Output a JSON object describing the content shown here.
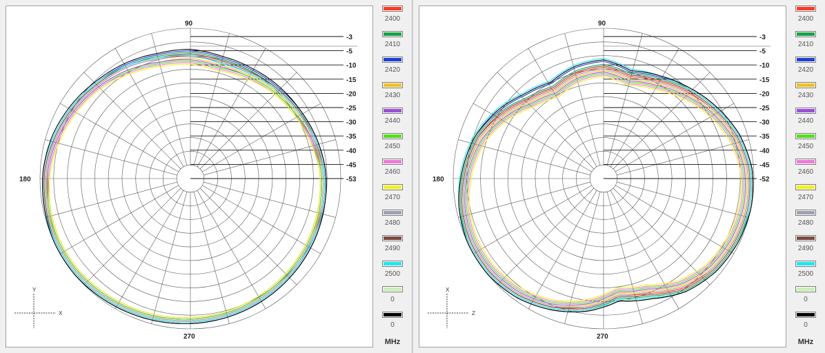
{
  "legend_unit": "MHz",
  "legend": [
    {
      "label": "2400",
      "color": "#ff3b1f"
    },
    {
      "label": "2410",
      "color": "#1aa04a"
    },
    {
      "label": "2420",
      "color": "#1f3fd0"
    },
    {
      "label": "2430",
      "color": "#f0c020"
    },
    {
      "label": "2440",
      "color": "#9a4fd8"
    },
    {
      "label": "2450",
      "color": "#55dd22"
    },
    {
      "label": "2460",
      "color": "#f07ad8"
    },
    {
      "label": "2470",
      "color": "#f2f020"
    },
    {
      "label": "2480",
      "color": "#9aa2b0"
    },
    {
      "label": "2490",
      "color": "#7a4a42"
    },
    {
      "label": "2500",
      "color": "#22e6f0"
    },
    {
      "label": "0",
      "color": "#c8f0b8"
    },
    {
      "label": "0",
      "color": "#000000"
    }
  ],
  "chart_data": [
    {
      "type": "polar",
      "angle_labels": {
        "top": "90",
        "left": "180",
        "bottom": "270"
      },
      "radial_scale_labels": [
        "-3",
        "-5",
        "-10",
        "-15",
        "-20",
        "-25",
        "-30",
        "-35",
        "-40",
        "-45",
        "-53"
      ],
      "axis_indicator": {
        "vertical": "Y",
        "horizontal": "X"
      },
      "series": [
        {
          "name": "2400",
          "color": "#ff3b1f",
          "r_by_angle": [
            0.82,
            0.82,
            0.85,
            0.87,
            0.9,
            0.93,
            0.96,
            0.97,
            0.98,
            0.98,
            0.97,
            0.96,
            0.95,
            0.94,
            0.93,
            0.92,
            0.91,
            0.9,
            0.9,
            0.89,
            0.86,
            0.84,
            0.82,
            0.8,
            0.8,
            0.82
          ]
        },
        {
          "name": "2410",
          "color": "#1aa04a",
          "r_by_angle": [
            0.84,
            0.84,
            0.86,
            0.88,
            0.91,
            0.94,
            0.97,
            0.98,
            0.99,
            0.99,
            0.98,
            0.97,
            0.96,
            0.95,
            0.94,
            0.93,
            0.92,
            0.91,
            0.9,
            0.89,
            0.87,
            0.85,
            0.83,
            0.82,
            0.82,
            0.84
          ]
        },
        {
          "name": "2420",
          "color": "#1f3fd0",
          "r_by_angle": [
            0.85,
            0.85,
            0.87,
            0.89,
            0.92,
            0.95,
            0.98,
            0.99,
            1.0,
            1.0,
            0.99,
            0.98,
            0.97,
            0.96,
            0.95,
            0.94,
            0.93,
            0.92,
            0.91,
            0.9,
            0.88,
            0.86,
            0.84,
            0.83,
            0.83,
            0.85
          ]
        },
        {
          "name": "2430",
          "color": "#f0c020",
          "r_by_angle": [
            0.8,
            0.8,
            0.83,
            0.86,
            0.89,
            0.92,
            0.95,
            0.97,
            0.97,
            0.97,
            0.96,
            0.95,
            0.94,
            0.93,
            0.92,
            0.91,
            0.9,
            0.89,
            0.89,
            0.88,
            0.85,
            0.83,
            0.81,
            0.79,
            0.78,
            0.8
          ]
        },
        {
          "name": "2440",
          "color": "#9a4fd8",
          "r_by_angle": [
            0.79,
            0.8,
            0.83,
            0.86,
            0.89,
            0.92,
            0.95,
            0.96,
            0.97,
            0.97,
            0.96,
            0.95,
            0.94,
            0.93,
            0.92,
            0.91,
            0.9,
            0.89,
            0.88,
            0.87,
            0.85,
            0.82,
            0.8,
            0.78,
            0.77,
            0.79
          ]
        },
        {
          "name": "2450",
          "color": "#55dd22",
          "r_by_angle": [
            0.78,
            0.79,
            0.82,
            0.85,
            0.88,
            0.91,
            0.94,
            0.96,
            0.97,
            0.97,
            0.96,
            0.95,
            0.94,
            0.93,
            0.92,
            0.91,
            0.9,
            0.89,
            0.88,
            0.87,
            0.84,
            0.82,
            0.8,
            0.78,
            0.76,
            0.78
          ]
        },
        {
          "name": "2460",
          "color": "#f07ad8",
          "r_by_angle": [
            0.77,
            0.78,
            0.81,
            0.85,
            0.88,
            0.91,
            0.94,
            0.95,
            0.96,
            0.96,
            0.95,
            0.94,
            0.93,
            0.92,
            0.91,
            0.9,
            0.89,
            0.88,
            0.87,
            0.86,
            0.84,
            0.81,
            0.79,
            0.77,
            0.75,
            0.77
          ]
        },
        {
          "name": "2470",
          "color": "#f2f020",
          "r_by_angle": [
            0.76,
            0.77,
            0.8,
            0.84,
            0.87,
            0.9,
            0.93,
            0.95,
            0.96,
            0.96,
            0.95,
            0.94,
            0.93,
            0.92,
            0.91,
            0.9,
            0.89,
            0.88,
            0.87,
            0.86,
            0.83,
            0.81,
            0.79,
            0.76,
            0.74,
            0.76
          ]
        },
        {
          "name": "2480",
          "color": "#9aa2b0",
          "r_by_angle": [
            0.81,
            0.82,
            0.85,
            0.87,
            0.9,
            0.93,
            0.96,
            0.97,
            0.98,
            0.98,
            0.97,
            0.96,
            0.95,
            0.94,
            0.93,
            0.92,
            0.91,
            0.9,
            0.89,
            0.88,
            0.86,
            0.84,
            0.82,
            0.8,
            0.8,
            0.81
          ]
        },
        {
          "name": "2490",
          "color": "#7a4a42",
          "r_by_angle": [
            0.83,
            0.83,
            0.86,
            0.88,
            0.91,
            0.94,
            0.97,
            0.98,
            0.99,
            0.99,
            0.98,
            0.97,
            0.96,
            0.95,
            0.94,
            0.93,
            0.92,
            0.91,
            0.9,
            0.89,
            0.87,
            0.85,
            0.83,
            0.81,
            0.81,
            0.83
          ]
        },
        {
          "name": "2500",
          "color": "#22e6f0",
          "r_by_angle": [
            0.82,
            0.83,
            0.86,
            0.89,
            0.92,
            0.95,
            0.98,
            0.99,
            0.99,
            0.99,
            0.98,
            0.97,
            0.96,
            0.95,
            0.94,
            0.93,
            0.92,
            0.91,
            0.9,
            0.89,
            0.87,
            0.84,
            0.82,
            0.8,
            0.79,
            0.82
          ]
        },
        {
          "name": "0",
          "color": "#000000",
          "r_by_angle": [
            0.86,
            0.86,
            0.88,
            0.9,
            0.93,
            0.96,
            0.98,
            0.99,
            1.0,
            1.0,
            0.99,
            0.98,
            0.97,
            0.96,
            0.95,
            0.94,
            0.93,
            0.92,
            0.91,
            0.9,
            0.88,
            0.86,
            0.85,
            0.84,
            0.84,
            0.86
          ]
        }
      ]
    },
    {
      "type": "polar",
      "angle_labels": {
        "top": "90",
        "left": "180",
        "bottom": "270"
      },
      "radial_scale_labels": [
        "-3",
        "-5",
        "-10",
        "-15",
        "-20",
        "-25",
        "-30",
        "-35",
        "-40",
        "-45",
        "-52"
      ],
      "axis_indicator": {
        "vertical": "X",
        "horizontal": "Z"
      },
      "series": [
        {
          "name": "2400",
          "color": "#ff3b1f",
          "r_by_angle": [
            0.74,
            0.72,
            0.68,
            0.72,
            0.8,
            0.88,
            0.92,
            0.96,
            0.98,
            0.98,
            0.96,
            0.92,
            0.86,
            0.78,
            0.82,
            0.9,
            0.94,
            0.96,
            0.97,
            0.96,
            0.92,
            0.86,
            0.8,
            0.74,
            0.7,
            0.74
          ]
        },
        {
          "name": "2410",
          "color": "#1aa04a",
          "r_by_angle": [
            0.76,
            0.74,
            0.7,
            0.74,
            0.82,
            0.89,
            0.93,
            0.97,
            0.99,
            0.99,
            0.97,
            0.93,
            0.88,
            0.8,
            0.84,
            0.92,
            0.96,
            0.98,
            0.99,
            0.98,
            0.94,
            0.88,
            0.82,
            0.76,
            0.72,
            0.76
          ]
        },
        {
          "name": "2420",
          "color": "#1f3fd0",
          "r_by_angle": [
            0.78,
            0.76,
            0.72,
            0.76,
            0.83,
            0.9,
            0.94,
            0.98,
            1.0,
            1.0,
            0.98,
            0.94,
            0.89,
            0.82,
            0.86,
            0.93,
            0.97,
            0.99,
            1.0,
            0.99,
            0.95,
            0.89,
            0.83,
            0.77,
            0.73,
            0.78
          ]
        },
        {
          "name": "2430",
          "color": "#f0c020",
          "r_by_angle": [
            0.72,
            0.7,
            0.66,
            0.7,
            0.78,
            0.86,
            0.91,
            0.95,
            0.97,
            0.97,
            0.95,
            0.91,
            0.85,
            0.77,
            0.8,
            0.88,
            0.93,
            0.95,
            0.96,
            0.95,
            0.91,
            0.85,
            0.78,
            0.72,
            0.68,
            0.72
          ]
        },
        {
          "name": "2440",
          "color": "#9a4fd8",
          "r_by_angle": [
            0.71,
            0.69,
            0.65,
            0.69,
            0.77,
            0.85,
            0.9,
            0.94,
            0.96,
            0.96,
            0.94,
            0.9,
            0.84,
            0.76,
            0.79,
            0.87,
            0.92,
            0.94,
            0.95,
            0.94,
            0.9,
            0.84,
            0.77,
            0.71,
            0.67,
            0.71
          ]
        },
        {
          "name": "2450",
          "color": "#55dd22",
          "r_by_angle": [
            0.7,
            0.68,
            0.64,
            0.68,
            0.76,
            0.84,
            0.89,
            0.93,
            0.95,
            0.95,
            0.93,
            0.89,
            0.83,
            0.75,
            0.78,
            0.86,
            0.91,
            0.93,
            0.94,
            0.93,
            0.89,
            0.83,
            0.76,
            0.7,
            0.66,
            0.7
          ]
        },
        {
          "name": "2460",
          "color": "#f07ad8",
          "r_by_angle": [
            0.69,
            0.67,
            0.63,
            0.67,
            0.75,
            0.83,
            0.88,
            0.92,
            0.94,
            0.94,
            0.92,
            0.88,
            0.82,
            0.74,
            0.77,
            0.85,
            0.9,
            0.92,
            0.93,
            0.92,
            0.88,
            0.82,
            0.75,
            0.69,
            0.65,
            0.69
          ]
        },
        {
          "name": "2470",
          "color": "#f2f020",
          "r_by_angle": [
            0.68,
            0.66,
            0.62,
            0.66,
            0.74,
            0.82,
            0.87,
            0.91,
            0.93,
            0.93,
            0.91,
            0.87,
            0.81,
            0.73,
            0.76,
            0.84,
            0.89,
            0.91,
            0.92,
            0.91,
            0.87,
            0.81,
            0.74,
            0.68,
            0.64,
            0.68
          ]
        },
        {
          "name": "2480",
          "color": "#9aa2b0",
          "r_by_angle": [
            0.73,
            0.71,
            0.67,
            0.71,
            0.79,
            0.87,
            0.91,
            0.95,
            0.97,
            0.97,
            0.95,
            0.91,
            0.86,
            0.78,
            0.81,
            0.89,
            0.94,
            0.96,
            0.97,
            0.96,
            0.92,
            0.86,
            0.79,
            0.73,
            0.69,
            0.73
          ]
        },
        {
          "name": "2490",
          "color": "#7a4a42",
          "r_by_angle": [
            0.75,
            0.73,
            0.69,
            0.73,
            0.81,
            0.88,
            0.92,
            0.96,
            0.98,
            0.98,
            0.96,
            0.92,
            0.87,
            0.79,
            0.83,
            0.91,
            0.95,
            0.97,
            0.98,
            0.97,
            0.93,
            0.87,
            0.81,
            0.75,
            0.71,
            0.75
          ]
        },
        {
          "name": "2500",
          "color": "#22e6f0",
          "r_by_angle": [
            0.8,
            0.78,
            0.74,
            0.78,
            0.85,
            0.91,
            0.95,
            0.98,
            0.99,
            0.99,
            0.97,
            0.93,
            0.88,
            0.81,
            0.85,
            0.93,
            0.97,
            0.99,
            0.99,
            0.98,
            0.94,
            0.88,
            0.82,
            0.78,
            0.75,
            0.8
          ]
        },
        {
          "name": "0",
          "color": "#000000",
          "r_by_angle": [
            0.79,
            0.77,
            0.73,
            0.77,
            0.84,
            0.9,
            0.94,
            0.98,
            1.0,
            1.0,
            0.98,
            0.94,
            0.89,
            0.82,
            0.86,
            0.93,
            0.97,
            0.99,
            1.0,
            0.99,
            0.95,
            0.89,
            0.83,
            0.78,
            0.74,
            0.79
          ]
        }
      ]
    }
  ]
}
